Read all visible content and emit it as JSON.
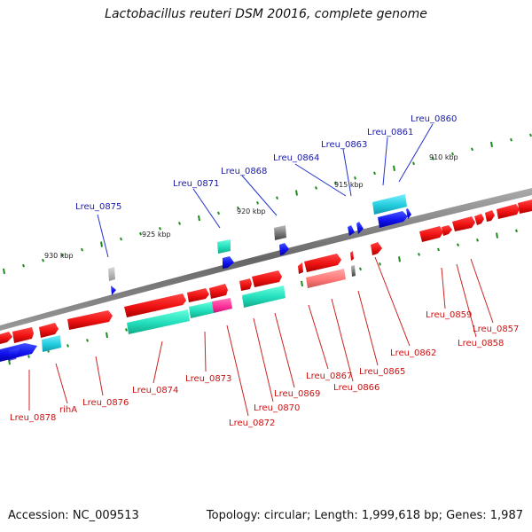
{
  "title": "Lactobacillus reuteri DSM 20016, complete genome",
  "footer": {
    "accession": "Accession: NC_009513",
    "topology": "Topology: circular; Length: 1,999,618 bp; Genes: 1,987"
  },
  "scale_labels": [
    "930 kbp",
    "925 kbp",
    "920 kbp",
    "915 kbp",
    "910 kbp"
  ],
  "upper_gene_labels": [
    "Lreu_0875",
    "Lreu_0871",
    "Lreu_0868",
    "Lreu_0864",
    "Lreu_0863",
    "Lreu_0861",
    "Lreu_0860"
  ],
  "lower_gene_labels": [
    "Lreu_0878",
    "rihA",
    "Lreu_0876",
    "Lreu_0874",
    "Lreu_0873",
    "Lreu_0872",
    "Lreu_0870",
    "Lreu_0869",
    "Lreu_0867",
    "Lreu_0866",
    "Lreu_0865",
    "Lreu_0862",
    "Lreu_0859",
    "Lreu_0858",
    "Lreu_0857"
  ],
  "colors": {
    "forward_gene": "#ee1111",
    "reverse_gene": "#1111ee",
    "upper_label": "#1a1aaa",
    "lower_label": "#cc1111",
    "teal_gene": "#22ddbb",
    "cyan_gene": "#22ccdd",
    "pink_gene": "#ff3399",
    "grey_gene": "#888888",
    "backbone": "#777777",
    "tick": "#228822"
  }
}
